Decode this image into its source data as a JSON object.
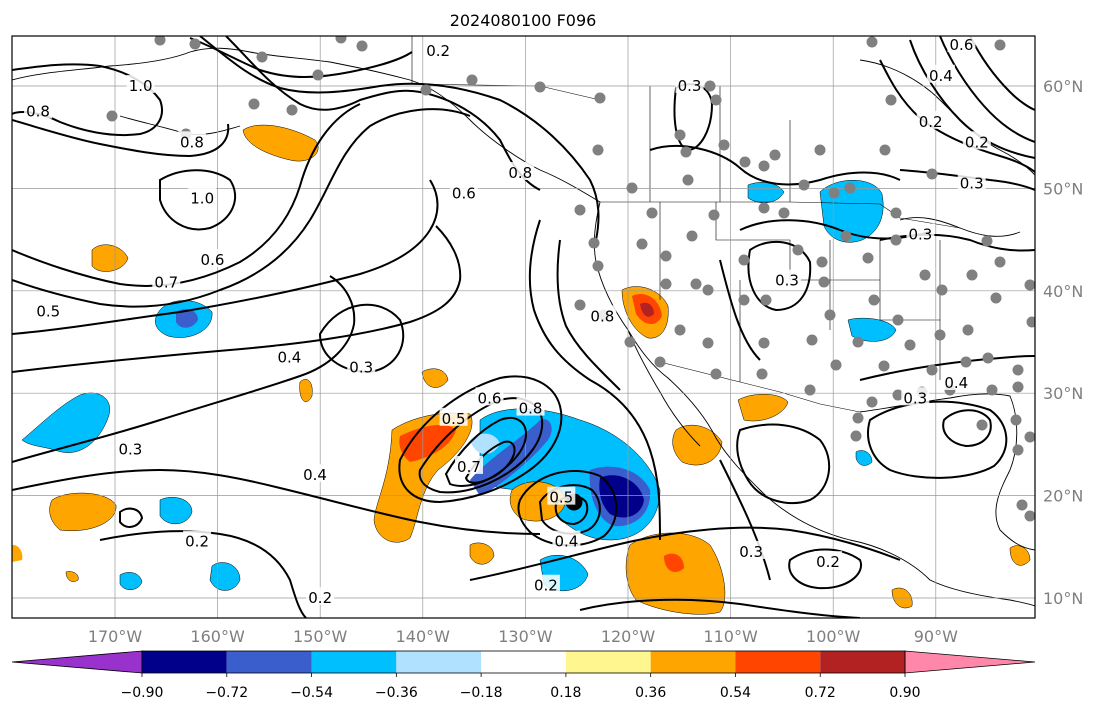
{
  "title": "2024080100 F096",
  "longitude_labels": [
    "170°W",
    "160°W",
    "150°W",
    "140°W",
    "130°W",
    "120°W",
    "110°W",
    "100°W",
    "90°W"
  ],
  "latitude_labels": [
    "60°N",
    "50°N",
    "40°N",
    "30°N",
    "20°N",
    "10°N"
  ],
  "colorbar": {
    "tick_labels": [
      "−0.90",
      "−0.72",
      "−0.54",
      "−0.36",
      "−0.18",
      "0.18",
      "0.36",
      "0.54",
      "0.72",
      "0.90"
    ],
    "colors": [
      "#9932cc",
      "#00008b",
      "#3a5fcd",
      "#00bfff",
      "#b0e2ff",
      "#ffffff",
      "#fff68f",
      "#ffa500",
      "#ff4500",
      "#b22222",
      "#ff88aa"
    ]
  },
  "contour_labels": [
    {
      "text": "0.2",
      "lon": -138.5,
      "lat": 63.4
    },
    {
      "text": "1.0",
      "lon": -167.5,
      "lat": 60.0
    },
    {
      "text": "0.8",
      "lon": -177.5,
      "lat": 57.5
    },
    {
      "text": "0.8",
      "lon": -162.5,
      "lat": 54.5
    },
    {
      "text": "0.6",
      "lon": -136.0,
      "lat": 49.5
    },
    {
      "text": "0.8",
      "lon": -130.5,
      "lat": 51.5
    },
    {
      "text": "1.0",
      "lon": -161.5,
      "lat": 49.0
    },
    {
      "text": "0.6",
      "lon": -160.5,
      "lat": 43.0
    },
    {
      "text": "0.7",
      "lon": -165.0,
      "lat": 40.8
    },
    {
      "text": "0.5",
      "lon": -176.5,
      "lat": 38.0
    },
    {
      "text": "0.4",
      "lon": -153.0,
      "lat": 33.5
    },
    {
      "text": "0.3",
      "lon": -146.0,
      "lat": 32.5
    },
    {
      "text": "0.3",
      "lon": -168.5,
      "lat": 24.5
    },
    {
      "text": "0.4",
      "lon": -150.5,
      "lat": 22.0
    },
    {
      "text": "0.2",
      "lon": -162.0,
      "lat": 15.5
    },
    {
      "text": "0.2",
      "lon": -150.0,
      "lat": 10.0
    },
    {
      "text": "0.5",
      "lon": -137.0,
      "lat": 27.5
    },
    {
      "text": "0.6",
      "lon": -133.5,
      "lat": 29.5
    },
    {
      "text": "0.8",
      "lon": -129.5,
      "lat": 28.5
    },
    {
      "text": "0.7",
      "lon": -135.5,
      "lat": 22.8
    },
    {
      "text": "0.5",
      "lon": -126.5,
      "lat": 19.8
    },
    {
      "text": "0.4",
      "lon": -126.0,
      "lat": 15.5
    },
    {
      "text": "0.2",
      "lon": -128.0,
      "lat": 11.2
    },
    {
      "text": "0.8",
      "lon": -122.5,
      "lat": 37.5
    },
    {
      "text": "0.3",
      "lon": -114.0,
      "lat": 60.0
    },
    {
      "text": "0.3",
      "lon": -104.5,
      "lat": 41.0
    },
    {
      "text": "0.3",
      "lon": -108.0,
      "lat": 14.5
    },
    {
      "text": "0.2",
      "lon": -100.5,
      "lat": 13.5
    },
    {
      "text": "0.3",
      "lon": -91.5,
      "lat": 45.5
    },
    {
      "text": "0.3",
      "lon": -92.0,
      "lat": 29.5
    },
    {
      "text": "0.4",
      "lon": -88.0,
      "lat": 31.0
    },
    {
      "text": "0.4",
      "lon": -89.5,
      "lat": 61.0
    },
    {
      "text": "0.6",
      "lon": -87.5,
      "lat": 64.0
    },
    {
      "text": "0.2",
      "lon": -90.5,
      "lat": 56.5
    },
    {
      "text": "0.2",
      "lon": -86.0,
      "lat": 54.5
    },
    {
      "text": "0.3",
      "lon": -86.5,
      "lat": 50.5
    }
  ]
}
